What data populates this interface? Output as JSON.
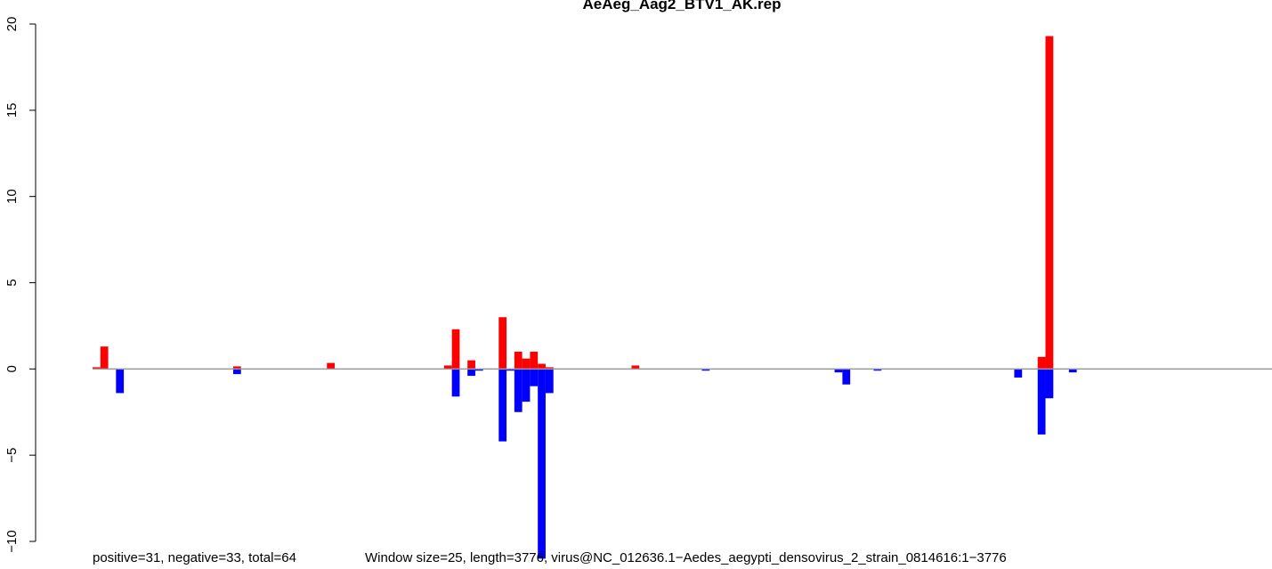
{
  "chart_data": {
    "type": "bar",
    "title": "AeAeg_Aag2_BTV1_AK.rep",
    "footer_left": "positive=31, negative=33, total=64",
    "footer_right": "Window size=25, length=3776, virus@NC_012636.1−Aedes_aegypti_densovirus_2_strain_0814616:1−3776",
    "xlabel": "",
    "ylabel": "",
    "x_range": [
      1,
      3776
    ],
    "window_size": 25,
    "ylim": [
      -10,
      20
    ],
    "y_ticks": [
      -10,
      -5,
      0,
      5,
      10,
      15,
      20
    ],
    "y_tick_labels": [
      "−10",
      "−5",
      "0",
      "5",
      "10",
      "15",
      "20"
    ],
    "grid": false,
    "colors": {
      "positive": "#ff0000",
      "negative": "#0000ff",
      "baseline": "#999999"
    },
    "series": [
      {
        "name": "positive",
        "color": "#ff0000",
        "points": [
          {
            "x": 1,
            "value": 0.1
          },
          {
            "x": 26,
            "value": 1.3
          },
          {
            "x": 451,
            "value": 0.15
          },
          {
            "x": 751,
            "value": 0.35
          },
          {
            "x": 1126,
            "value": 0.2
          },
          {
            "x": 1151,
            "value": 2.3
          },
          {
            "x": 1201,
            "value": 0.5
          },
          {
            "x": 1301,
            "value": 3.0
          },
          {
            "x": 1351,
            "value": 1.0
          },
          {
            "x": 1376,
            "value": 0.6
          },
          {
            "x": 1401,
            "value": 1.0
          },
          {
            "x": 1426,
            "value": 0.3
          },
          {
            "x": 1451,
            "value": 0.1
          },
          {
            "x": 1726,
            "value": 0.2
          },
          {
            "x": 3026,
            "value": 0.7
          },
          {
            "x": 3051,
            "value": 19.3
          }
        ]
      },
      {
        "name": "negative",
        "color": "#0000ff",
        "points": [
          {
            "x": 76,
            "value": -1.4
          },
          {
            "x": 451,
            "value": -0.3
          },
          {
            "x": 1151,
            "value": -1.6
          },
          {
            "x": 1201,
            "value": -0.4
          },
          {
            "x": 1226,
            "value": -0.1
          },
          {
            "x": 1301,
            "value": -4.2
          },
          {
            "x": 1326,
            "value": -0.1
          },
          {
            "x": 1351,
            "value": -2.5
          },
          {
            "x": 1376,
            "value": -1.9
          },
          {
            "x": 1401,
            "value": -1.0
          },
          {
            "x": 1426,
            "value": -11.0
          },
          {
            "x": 1451,
            "value": -1.4
          },
          {
            "x": 1951,
            "value": -0.1
          },
          {
            "x": 2376,
            "value": -0.2
          },
          {
            "x": 2401,
            "value": -0.9
          },
          {
            "x": 2501,
            "value": -0.1
          },
          {
            "x": 2951,
            "value": -0.5
          },
          {
            "x": 3026,
            "value": -3.8
          },
          {
            "x": 3051,
            "value": -1.7
          },
          {
            "x": 3126,
            "value": -0.2
          }
        ]
      }
    ]
  }
}
